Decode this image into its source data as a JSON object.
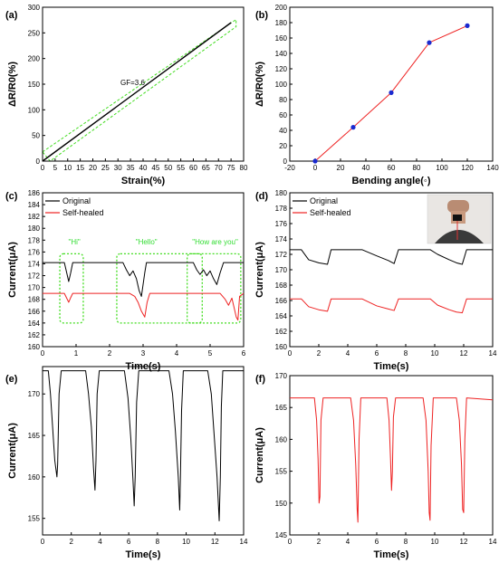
{
  "chart_data": [
    {
      "id": "a",
      "panel_label": "(a)",
      "type": "line",
      "xlabel": "Strain(%)",
      "ylabel": "ΔR/R0(%)",
      "xlim": [
        0,
        80
      ],
      "ylim": [
        0,
        300
      ],
      "xticks": [
        "0",
        "5",
        "10",
        "15",
        "20",
        "25",
        "30",
        "35",
        "40",
        "45",
        "50",
        "55",
        "60",
        "65",
        "70",
        "75",
        "80"
      ],
      "yticks": [
        "0",
        "50",
        "100",
        "150",
        "200",
        "250",
        "300"
      ],
      "annotation": "GF=3.6",
      "series": [
        {
          "color": "#000000",
          "x": [
            0,
            75
          ],
          "y": [
            0,
            270
          ]
        },
        {
          "color": "#44dd22",
          "dashed": true,
          "x": [
            0,
            77
          ],
          "y": [
            18,
            276
          ]
        },
        {
          "color": "#44dd22",
          "dashed": true,
          "x": [
            3,
            77
          ],
          "y": [
            0,
            262
          ]
        }
      ]
    },
    {
      "id": "b",
      "panel_label": "(b)",
      "type": "line",
      "xlabel": "Bending angle(◦)",
      "ylabel": "ΔR/R0(%)",
      "xlim": [
        -20,
        140
      ],
      "ylim": [
        0,
        200
      ],
      "xticks": [
        "-20",
        "0",
        "20",
        "40",
        "60",
        "80",
        "100",
        "120",
        "140"
      ],
      "yticks": [
        "0",
        "20",
        "40",
        "60",
        "80",
        "100",
        "120",
        "140",
        "160",
        "180",
        "200"
      ],
      "series": [
        {
          "color": "#ee2222",
          "marker_color": "#1a2ad0",
          "x": [
            0,
            30,
            60,
            90,
            120
          ],
          "y": [
            0,
            44,
            89,
            154,
            176
          ]
        }
      ]
    },
    {
      "id": "c",
      "panel_label": "(c)",
      "type": "line",
      "xlabel": "Time(s)",
      "ylabel": "Current(μA)",
      "xlim": [
        0,
        6
      ],
      "ylim": [
        160,
        186
      ],
      "xticks": [
        "0",
        "1",
        "2",
        "3",
        "4",
        "5",
        "6"
      ],
      "yticks": [
        "160",
        "162",
        "164",
        "166",
        "168",
        "170",
        "172",
        "174",
        "176",
        "178",
        "180",
        "182",
        "184",
        "186"
      ],
      "annotations": [
        "\"Hi\"",
        "\"Hello\"",
        "\"How are you\""
      ],
      "series": [
        {
          "name": "Original",
          "color": "#000000",
          "x": [
            0,
            0.65,
            0.72,
            0.78,
            0.84,
            0.9,
            1.0,
            2.4,
            2.5,
            2.6,
            2.7,
            2.8,
            2.88,
            2.95,
            3.05,
            3.1,
            3.3,
            4.5,
            4.6,
            4.7,
            4.8,
            4.9,
            5.0,
            5.1,
            5.2,
            5.3,
            5.4,
            5.5,
            6.0
          ],
          "y": [
            174.2,
            174.2,
            172.5,
            171.0,
            172.5,
            174.2,
            174.2,
            174.2,
            173.0,
            172.0,
            172.8,
            171.5,
            169.5,
            168.5,
            172.5,
            174.2,
            174.2,
            174.2,
            173.0,
            172.2,
            173.0,
            172.0,
            172.8,
            171.5,
            170.5,
            172.5,
            174.2,
            174.2,
            174.2
          ]
        },
        {
          "name": "Self-healed",
          "color": "#ee2222",
          "x": [
            0,
            0.65,
            0.72,
            0.78,
            0.84,
            0.9,
            1.0,
            2.6,
            2.75,
            2.85,
            2.95,
            3.05,
            3.12,
            3.2,
            5.3,
            5.45,
            5.55,
            5.65,
            5.72,
            5.78,
            5.83,
            5.88,
            6.0
          ],
          "y": [
            169.0,
            169.0,
            168.2,
            167.5,
            168.3,
            169.0,
            169.0,
            169.0,
            168.5,
            167.5,
            166.0,
            165.0,
            167.5,
            169.0,
            169.0,
            168.0,
            167.0,
            168.2,
            166.5,
            165.0,
            164.5,
            168.5,
            169.0
          ]
        }
      ]
    },
    {
      "id": "d",
      "panel_label": "(d)",
      "type": "line",
      "xlabel": "Time(s)",
      "ylabel": "Current(μA)",
      "xlim": [
        0,
        14
      ],
      "ylim": [
        160,
        180
      ],
      "xticks": [
        "0",
        "2",
        "4",
        "6",
        "8",
        "10",
        "12",
        "14"
      ],
      "yticks": [
        "160",
        "162",
        "164",
        "166",
        "168",
        "170",
        "172",
        "174",
        "176",
        "178",
        "180"
      ],
      "series": [
        {
          "name": "Original",
          "color": "#000000",
          "x": [
            0,
            0.8,
            1.3,
            2.0,
            2.6,
            2.85,
            3.3,
            5.0,
            6.0,
            6.8,
            7.2,
            7.5,
            8.0,
            9.7,
            10.2,
            11.0,
            11.5,
            11.9,
            12.2,
            14.0
          ],
          "y": [
            172.6,
            172.6,
            171.3,
            170.9,
            170.7,
            172.6,
            172.6,
            172.6,
            171.8,
            171.2,
            170.8,
            172.6,
            172.6,
            172.6,
            172.0,
            171.3,
            170.9,
            170.7,
            172.6,
            172.6
          ]
        },
        {
          "name": "Self-healed",
          "color": "#ee2222",
          "x": [
            0,
            0.8,
            1.3,
            2.0,
            2.6,
            2.85,
            3.3,
            5.0,
            6.0,
            6.8,
            7.2,
            7.5,
            8.0,
            9.7,
            10.2,
            11.0,
            11.5,
            11.9,
            12.2,
            14.0
          ],
          "y": [
            166.2,
            166.2,
            165.2,
            164.8,
            164.6,
            166.2,
            166.2,
            166.2,
            165.3,
            164.9,
            164.7,
            166.2,
            166.2,
            166.2,
            165.4,
            164.8,
            164.5,
            164.4,
            166.2,
            166.2
          ]
        }
      ]
    },
    {
      "id": "e",
      "panel_label": "(e)",
      "type": "line",
      "xlabel": "Time(s)",
      "ylabel": "Current(μA)",
      "xlim": [
        0,
        14
      ],
      "ylim": [
        153,
        173.3
      ],
      "xticks": [
        "0",
        "2",
        "4",
        "6",
        "8",
        "10",
        "12",
        "14"
      ],
      "yticks": [
        "155",
        "160",
        "165",
        "170"
      ],
      "series": [
        {
          "color": "#000000",
          "x": [
            0,
            0.4,
            0.55,
            0.7,
            0.85,
            1.0,
            1.05,
            1.15,
            1.3,
            1.6,
            3.0,
            3.2,
            3.4,
            3.55,
            3.65,
            3.72,
            3.8,
            3.95,
            4.2,
            5.7,
            5.95,
            6.15,
            6.3,
            6.38,
            6.45,
            6.55,
            6.7,
            6.9,
            8.8,
            9.05,
            9.25,
            9.45,
            9.55,
            9.6,
            9.68,
            9.8,
            10.0,
            11.5,
            11.75,
            11.95,
            12.15,
            12.3,
            12.38,
            12.45,
            12.55,
            12.7,
            14.0
          ],
          "y": [
            172.8,
            172.8,
            170.0,
            166.0,
            162.0,
            160.0,
            161.5,
            170.0,
            172.8,
            172.8,
            172.8,
            170.0,
            166.0,
            161.0,
            158.4,
            162.0,
            170.0,
            172.8,
            172.8,
            172.8,
            169.5,
            164.5,
            159.5,
            156.5,
            160.0,
            169.0,
            172.8,
            172.8,
            172.8,
            170.0,
            165.5,
            160.0,
            156.0,
            160.0,
            168.0,
            172.8,
            172.8,
            172.8,
            170.0,
            165.0,
            160.0,
            154.7,
            160.0,
            168.5,
            172.8,
            172.8,
            172.8
          ]
        }
      ]
    },
    {
      "id": "f",
      "panel_label": "(f)",
      "type": "line",
      "xlabel": "Time(s)",
      "ylabel": "Current(μA)",
      "xlim": [
        0,
        14
      ],
      "ylim": [
        145,
        170
      ],
      "xticks": [
        "0",
        "2",
        "4",
        "6",
        "8",
        "10",
        "12",
        "14"
      ],
      "yticks": [
        "145",
        "150",
        "155",
        "160",
        "165",
        "170"
      ],
      "series": [
        {
          "color": "#ee2222",
          "x": [
            0,
            1.7,
            1.85,
            1.95,
            2.02,
            2.08,
            2.15,
            2.3,
            4.2,
            4.4,
            4.55,
            4.65,
            4.7,
            4.78,
            4.9,
            6.7,
            6.85,
            6.95,
            7.02,
            7.08,
            7.15,
            7.3,
            9.2,
            9.4,
            9.55,
            9.62,
            9.68,
            9.75,
            9.9,
            11.5,
            11.7,
            11.85,
            11.93,
            12.0,
            12.08,
            12.2,
            14.0
          ],
          "y": [
            166.5,
            166.5,
            163.0,
            157.0,
            150.0,
            151.0,
            163.0,
            166.5,
            166.5,
            163.0,
            156.0,
            149.0,
            147.0,
            160.0,
            166.5,
            166.5,
            163.0,
            157.0,
            152.0,
            155.0,
            163.5,
            166.5,
            166.5,
            163.0,
            155.0,
            148.5,
            147.3,
            159.0,
            166.5,
            166.5,
            163.0,
            156.0,
            149.0,
            148.5,
            160.0,
            166.5,
            166.2
          ]
        }
      ]
    }
  ]
}
